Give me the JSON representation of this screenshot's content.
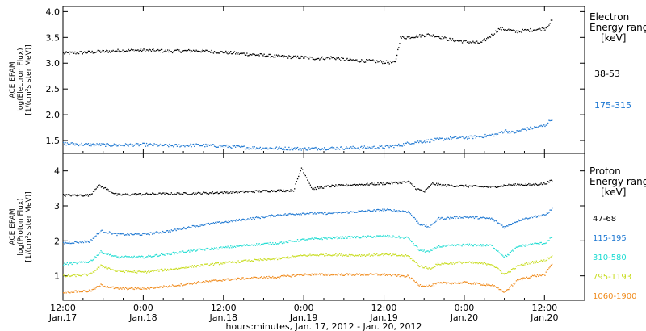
{
  "chart_data": [
    {
      "type": "scatter",
      "panel": "electron",
      "ylabel": "ACE EPAM",
      "ylabel2": "log(Electron Flux)",
      "ylabel3": "[1/(cm²s ster MeV)]",
      "ylim": [
        1.25,
        4.1
      ],
      "yticks": [
        "1.5",
        "2.0",
        "2.5",
        "3.0",
        "3.5",
        "4.0"
      ],
      "legend_title": [
        "Electron",
        "Energy ranges",
        "[keV]"
      ],
      "series": [
        {
          "name": "38-53",
          "color": "#000000",
          "points": [
            [
              0,
              3.2
            ],
            [
              1,
              3.22
            ],
            [
              2,
              3.25
            ],
            [
              3,
              3.26
            ],
            [
              4,
              3.24
            ],
            [
              5,
              3.25
            ],
            [
              6,
              3.22
            ],
            [
              7,
              3.18
            ],
            [
              8,
              3.14
            ],
            [
              9,
              3.12
            ],
            [
              9.5,
              3.1
            ],
            [
              10,
              3.12
            ],
            [
              10.5,
              3.08
            ],
            [
              11,
              3.06
            ],
            [
              11.5,
              3.05
            ],
            [
              12,
              3.03
            ],
            [
              12.4,
              3.02
            ],
            [
              12.6,
              3.5
            ],
            [
              13,
              3.52
            ],
            [
              13.6,
              3.56
            ],
            [
              14,
              3.53
            ],
            [
              14.4,
              3.47
            ],
            [
              14.8,
              3.44
            ],
            [
              15.2,
              3.42
            ],
            [
              15.6,
              3.4
            ],
            [
              16,
              3.55
            ],
            [
              16.3,
              3.68
            ],
            [
              16.6,
              3.66
            ],
            [
              16.9,
              3.62
            ],
            [
              17.2,
              3.64
            ],
            [
              17.6,
              3.66
            ],
            [
              18,
              3.68
            ],
            [
              18.3,
              3.86
            ]
          ]
        },
        {
          "name": "175-315",
          "color": "#1e78d2",
          "points": [
            [
              0,
              1.45
            ],
            [
              1,
              1.43
            ],
            [
              2,
              1.42
            ],
            [
              3,
              1.43
            ],
            [
              4,
              1.41
            ],
            [
              5,
              1.42
            ],
            [
              6,
              1.4
            ],
            [
              7,
              1.37
            ],
            [
              8,
              1.36
            ],
            [
              9,
              1.35
            ],
            [
              10,
              1.36
            ],
            [
              11,
              1.37
            ],
            [
              12,
              1.38
            ],
            [
              12.6,
              1.42
            ],
            [
              13,
              1.47
            ],
            [
              13.6,
              1.5
            ],
            [
              14,
              1.53
            ],
            [
              14.6,
              1.56
            ],
            [
              15.2,
              1.57
            ],
            [
              15.8,
              1.6
            ],
            [
              16.2,
              1.63
            ],
            [
              16.5,
              1.7
            ],
            [
              16.8,
              1.66
            ],
            [
              17.2,
              1.72
            ],
            [
              17.6,
              1.76
            ],
            [
              18,
              1.8
            ],
            [
              18.3,
              1.95
            ]
          ]
        }
      ]
    },
    {
      "type": "scatter",
      "panel": "proton",
      "ylabel": "ACE EPAM",
      "ylabel2": "log(Proton Flux)",
      "ylabel3": "[1/(cm²s ster MeV)]",
      "ylim": [
        0.3,
        4.5
      ],
      "yticks": [
        "1",
        "2",
        "3",
        "4"
      ],
      "legend_title": [
        "Proton",
        "Energy ranges",
        "[keV]"
      ],
      "series": [
        {
          "name": "47-68",
          "color": "#000000",
          "points": [
            [
              0,
              3.32
            ],
            [
              1,
              3.32
            ],
            [
              1.3,
              3.6
            ],
            [
              1.6,
              3.5
            ],
            [
              2,
              3.33
            ],
            [
              3,
              3.35
            ],
            [
              4,
              3.36
            ],
            [
              5,
              3.37
            ],
            [
              6,
              3.4
            ],
            [
              7,
              3.42
            ],
            [
              8,
              3.45
            ],
            [
              8.6,
              3.45
            ],
            [
              8.9,
              4.1
            ],
            [
              9.3,
              3.5
            ],
            [
              10,
              3.58
            ],
            [
              11,
              3.62
            ],
            [
              12,
              3.65
            ],
            [
              12.9,
              3.7
            ],
            [
              13.2,
              3.5
            ],
            [
              13.5,
              3.42
            ],
            [
              13.8,
              3.65
            ],
            [
              14.2,
              3.6
            ],
            [
              15,
              3.58
            ],
            [
              16,
              3.55
            ],
            [
              16.5,
              3.6
            ],
            [
              17,
              3.62
            ],
            [
              17.5,
              3.62
            ],
            [
              18,
              3.65
            ],
            [
              18.3,
              3.75
            ]
          ]
        },
        {
          "name": "115-195",
          "color": "#1e78d2",
          "points": [
            [
              0,
              1.95
            ],
            [
              1,
              2.0
            ],
            [
              1.4,
              2.3
            ],
            [
              2,
              2.2
            ],
            [
              3,
              2.2
            ],
            [
              4,
              2.3
            ],
            [
              5,
              2.45
            ],
            [
              6,
              2.55
            ],
            [
              7,
              2.65
            ],
            [
              8,
              2.75
            ],
            [
              9,
              2.8
            ],
            [
              10,
              2.8
            ],
            [
              11,
              2.85
            ],
            [
              12,
              2.9
            ],
            [
              12.9,
              2.85
            ],
            [
              13.3,
              2.5
            ],
            [
              13.7,
              2.4
            ],
            [
              14,
              2.65
            ],
            [
              15,
              2.7
            ],
            [
              16,
              2.65
            ],
            [
              16.5,
              2.4
            ],
            [
              17,
              2.6
            ],
            [
              17.5,
              2.7
            ],
            [
              18,
              2.75
            ],
            [
              18.3,
              2.95
            ]
          ]
        },
        {
          "name": "310-580",
          "color": "#1edcd2",
          "points": [
            [
              0,
              1.35
            ],
            [
              1,
              1.42
            ],
            [
              1.4,
              1.7
            ],
            [
              2,
              1.55
            ],
            [
              3,
              1.55
            ],
            [
              4,
              1.65
            ],
            [
              5,
              1.75
            ],
            [
              6,
              1.82
            ],
            [
              7,
              1.9
            ],
            [
              8,
              1.95
            ],
            [
              9,
              2.05
            ],
            [
              10,
              2.1
            ],
            [
              11,
              2.12
            ],
            [
              12,
              2.15
            ],
            [
              12.9,
              2.1
            ],
            [
              13.3,
              1.75
            ],
            [
              13.7,
              1.7
            ],
            [
              14,
              1.85
            ],
            [
              15,
              1.9
            ],
            [
              16,
              1.88
            ],
            [
              16.5,
              1.55
            ],
            [
              17,
              1.85
            ],
            [
              17.5,
              1.92
            ],
            [
              18,
              1.95
            ],
            [
              18.3,
              2.15
            ]
          ]
        },
        {
          "name": "795-1193",
          "color": "#c8dc1e",
          "points": [
            [
              0,
              1.0
            ],
            [
              1,
              1.05
            ],
            [
              1.4,
              1.3
            ],
            [
              2,
              1.15
            ],
            [
              3,
              1.12
            ],
            [
              4,
              1.2
            ],
            [
              5,
              1.3
            ],
            [
              6,
              1.38
            ],
            [
              7,
              1.45
            ],
            [
              8,
              1.5
            ],
            [
              9,
              1.6
            ],
            [
              10,
              1.62
            ],
            [
              11,
              1.6
            ],
            [
              12,
              1.62
            ],
            [
              12.9,
              1.58
            ],
            [
              13.3,
              1.3
            ],
            [
              13.7,
              1.22
            ],
            [
              14,
              1.35
            ],
            [
              15,
              1.4
            ],
            [
              16,
              1.35
            ],
            [
              16.5,
              1.05
            ],
            [
              17,
              1.3
            ],
            [
              17.5,
              1.4
            ],
            [
              18,
              1.45
            ],
            [
              18.3,
              1.6
            ]
          ]
        },
        {
          "name": "1060-1900",
          "color": "#f08c1e",
          "points": [
            [
              0,
              0.55
            ],
            [
              1,
              0.58
            ],
            [
              1.4,
              0.75
            ],
            [
              2,
              0.65
            ],
            [
              3,
              0.65
            ],
            [
              4,
              0.72
            ],
            [
              5,
              0.82
            ],
            [
              6,
              0.9
            ],
            [
              7,
              0.95
            ],
            [
              8,
              0.98
            ],
            [
              9,
              1.05
            ],
            [
              10,
              1.05
            ],
            [
              11,
              1.05
            ],
            [
              12,
              1.05
            ],
            [
              12.9,
              1.0
            ],
            [
              13.3,
              0.75
            ],
            [
              13.7,
              0.72
            ],
            [
              14,
              0.8
            ],
            [
              15,
              0.82
            ],
            [
              16,
              0.75
            ],
            [
              16.5,
              0.55
            ],
            [
              17,
              0.9
            ],
            [
              17.5,
              1.0
            ],
            [
              18,
              1.05
            ],
            [
              18.3,
              1.4
            ]
          ]
        }
      ]
    }
  ],
  "xaxis": {
    "ticks": [
      {
        "h": 0,
        "top": "12:00",
        "bottom": "Jan.17"
      },
      {
        "h": 12,
        "top": "0:00",
        "bottom": "Jan.18"
      },
      {
        "h": 24,
        "top": "12:00",
        "bottom": "Jan.18"
      },
      {
        "h": 36,
        "top": "0:00",
        "bottom": "Jan.19"
      },
      {
        "h": 48,
        "top": "12:00",
        "bottom": "Jan.19"
      },
      {
        "h": 60,
        "top": "0:00",
        "bottom": "Jan.20"
      },
      {
        "h": 72,
        "top": "12:00",
        "bottom": "Jan.20"
      }
    ],
    "xlim_hours": [
      0,
      78
    ],
    "xlabel": "hours:minutes, Jan. 17, 2012 - Jan. 20, 2012"
  }
}
